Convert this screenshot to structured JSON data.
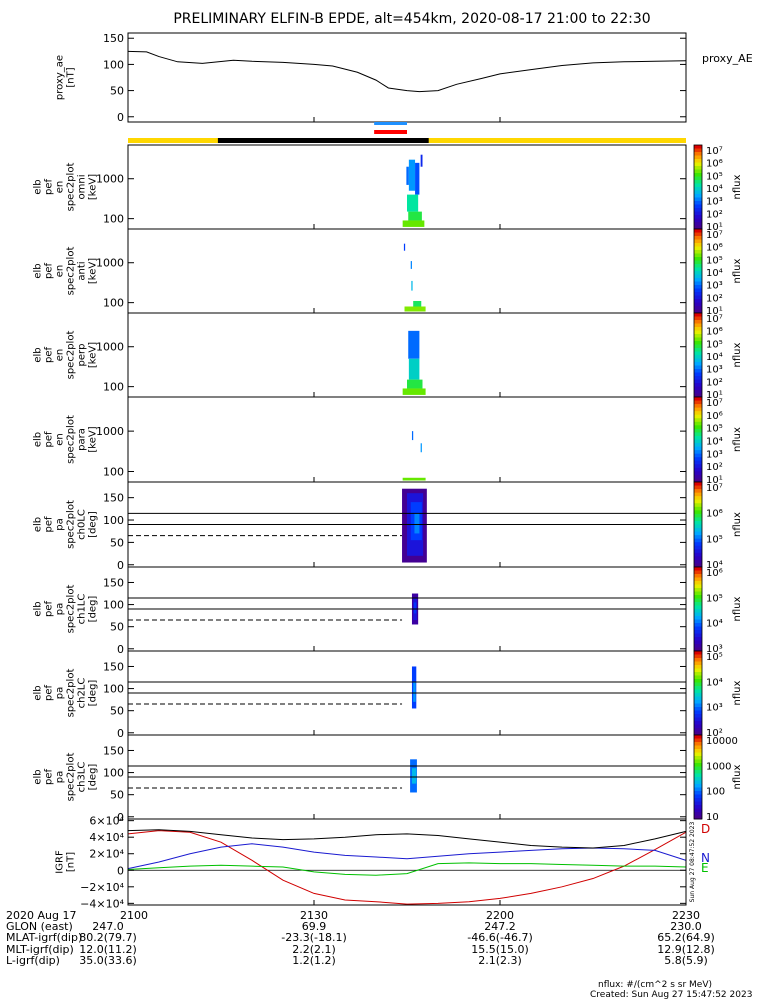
{
  "title": "PRELIMINARY ELFIN-B EPDE, alt=454km, 2020-08-17 21:00 to 22:30",
  "colors": {
    "sun_bar": "#ffd700",
    "shadow_bar": "#000000",
    "flag_blue": "#1e90ff",
    "flag_red": "#ff0000",
    "grf_x": "#000000",
    "grf_y": "#1a1ad0",
    "grf_z": "#00c000",
    "grf_total": "#d00000"
  },
  "chart_data": [
    {
      "type": "line",
      "panel": "proxy_ae",
      "ylabel": [
        "proxy_ae",
        "[nT]"
      ],
      "legend": "proxy_AE",
      "ylim": [
        -10,
        160
      ],
      "yticks": [
        "150",
        "100",
        "50",
        "0"
      ],
      "ytick_values": [
        150,
        100,
        50,
        0
      ],
      "x": [
        0,
        3,
        5,
        8,
        12,
        17,
        20,
        25,
        30,
        33,
        37,
        40,
        42,
        45,
        47,
        50,
        53,
        57,
        60,
        65,
        70,
        75,
        80,
        85,
        90
      ],
      "values": [
        125,
        124,
        115,
        105,
        102,
        108,
        106,
        104,
        100,
        97,
        85,
        70,
        55,
        50,
        48,
        50,
        62,
        73,
        82,
        90,
        98,
        103,
        105,
        106,
        107
      ]
    },
    {
      "type": "heatmap",
      "panel": "en_spec2plot_omni",
      "ylabel": [
        "elb",
        "pef",
        "en",
        "spec2plot",
        "omni",
        "[keV]"
      ],
      "yticks": [
        "1000",
        "100"
      ],
      "ytick_values": [
        1000,
        100
      ],
      "ylog": true,
      "ylim": [
        55,
        7000
      ],
      "colorbar": {
        "label": "nflux",
        "ticks": [
          "10⁷",
          "10⁶",
          "10⁵",
          "10⁴",
          "10³",
          "10²",
          "10¹"
        ]
      },
      "cells": [
        {
          "x0": 44.9,
          "x1": 45.3,
          "y0": 700,
          "y1": 2000,
          "level": 0.35
        },
        {
          "x0": 45.3,
          "x1": 46.3,
          "y0": 500,
          "y1": 3000,
          "level": 0.4
        },
        {
          "x0": 46.3,
          "x1": 47.0,
          "y0": 400,
          "y1": 2500,
          "level": 0.32
        },
        {
          "x0": 45.0,
          "x1": 46.8,
          "y0": 150,
          "y1": 400,
          "level": 0.55
        },
        {
          "x0": 45.2,
          "x1": 47.4,
          "y0": 90,
          "y1": 150,
          "level": 0.62
        },
        {
          "x0": 44.3,
          "x1": 47.8,
          "y0": 62,
          "y1": 90,
          "level": 0.7
        },
        {
          "x0": 47.2,
          "x1": 47.5,
          "y0": 2000,
          "y1": 4000,
          "level": 0.25
        }
      ]
    },
    {
      "type": "heatmap",
      "panel": "en_spec2plot_anti",
      "ylabel": [
        "elb",
        "pef",
        "en",
        "spec2plot",
        "anti",
        "[keV]"
      ],
      "yticks": [
        "1000",
        "100"
      ],
      "ytick_values": [
        1000,
        100
      ],
      "ylog": true,
      "ylim": [
        55,
        7000
      ],
      "colorbar": {
        "label": "nflux",
        "ticks": [
          "10⁷",
          "10⁶",
          "10⁵",
          "10⁴",
          "10³",
          "10²",
          "10¹"
        ]
      },
      "cells": [
        {
          "x0": 44.5,
          "x1": 44.7,
          "y0": 2000,
          "y1": 3000,
          "level": 0.3
        },
        {
          "x0": 45.6,
          "x1": 45.8,
          "y0": 700,
          "y1": 1100,
          "level": 0.38
        },
        {
          "x0": 45.7,
          "x1": 45.9,
          "y0": 200,
          "y1": 350,
          "level": 0.45
        },
        {
          "x0": 44.6,
          "x1": 48.0,
          "y0": 60,
          "y1": 80,
          "level": 0.72
        },
        {
          "x0": 46.0,
          "x1": 47.3,
          "y0": 80,
          "y1": 110,
          "level": 0.6
        }
      ]
    },
    {
      "type": "heatmap",
      "panel": "en_spec2plot_perp",
      "ylabel": [
        "elb",
        "pef",
        "en",
        "spec2plot",
        "perp",
        "[keV]"
      ],
      "yticks": [
        "1000",
        "100"
      ],
      "ytick_values": [
        1000,
        100
      ],
      "ylog": true,
      "ylim": [
        55,
        7000
      ],
      "colorbar": {
        "label": "nflux",
        "ticks": [
          "10⁷",
          "10⁶",
          "10⁵",
          "10⁴",
          "10³",
          "10²",
          "10¹"
        ]
      },
      "cells": [
        {
          "x0": 45.2,
          "x1": 47.0,
          "y0": 500,
          "y1": 2500,
          "level": 0.35
        },
        {
          "x0": 45.3,
          "x1": 47.0,
          "y0": 150,
          "y1": 500,
          "level": 0.5
        },
        {
          "x0": 45.0,
          "x1": 47.5,
          "y0": 90,
          "y1": 150,
          "level": 0.62
        },
        {
          "x0": 44.3,
          "x1": 48.0,
          "y0": 62,
          "y1": 90,
          "level": 0.7
        }
      ]
    },
    {
      "type": "heatmap",
      "panel": "en_spec2plot_para",
      "ylabel": [
        "elb",
        "pef",
        "en",
        "spec2plot",
        "para",
        "[keV]"
      ],
      "yticks": [
        "1000",
        "100"
      ],
      "ytick_values": [
        1000,
        100
      ],
      "ylog": true,
      "ylim": [
        55,
        7000
      ],
      "colorbar": {
        "label": "nflux",
        "ticks": [
          "10⁷",
          "10⁶",
          "10⁵",
          "10⁴",
          "10³",
          "10²",
          "10¹"
        ]
      },
      "cells": [
        {
          "x0": 45.8,
          "x1": 46.0,
          "y0": 600,
          "y1": 1000,
          "level": 0.35
        },
        {
          "x0": 47.2,
          "x1": 47.4,
          "y0": 300,
          "y1": 500,
          "level": 0.4
        },
        {
          "x0": 44.3,
          "x1": 48.0,
          "y0": 60,
          "y1": 70,
          "level": 0.7
        }
      ]
    },
    {
      "type": "heatmap",
      "panel": "pa_spec2plot_ch0LC",
      "ylabel": [
        "elb",
        "pef",
        "pa",
        "spec2plot",
        "ch0LC",
        "[deg]"
      ],
      "yticks": [
        "150",
        "100",
        "50",
        "0"
      ],
      "ytick_values": [
        150,
        100,
        50,
        0
      ],
      "ylim": [
        -5,
        185
      ],
      "loss_cone": [
        115,
        90
      ],
      "loss_cone_dashed": 65,
      "colorbar": {
        "label": "nflux",
        "ticks": [
          "10⁷",
          "10⁶",
          "10⁵",
          "10⁴"
        ]
      },
      "cells": [
        {
          "x0": 44.2,
          "x1": 48.2,
          "y0": 5,
          "y1": 170,
          "level": 0.05
        },
        {
          "x0": 45.0,
          "x1": 47.6,
          "y0": 20,
          "y1": 160,
          "level": 0.2
        },
        {
          "x0": 45.6,
          "x1": 47.4,
          "y0": 55,
          "y1": 140,
          "level": 0.3
        },
        {
          "x0": 46.2,
          "x1": 47.0,
          "y0": 70,
          "y1": 115,
          "level": 0.38
        }
      ]
    },
    {
      "type": "heatmap",
      "panel": "pa_spec2plot_ch1LC",
      "ylabel": [
        "elb",
        "pef",
        "pa",
        "spec2plot",
        "ch1LC",
        "[deg]"
      ],
      "yticks": [
        "150",
        "100",
        "50",
        "0"
      ],
      "ytick_values": [
        150,
        100,
        50,
        0
      ],
      "ylim": [
        -5,
        185
      ],
      "loss_cone": [
        115,
        90
      ],
      "loss_cone_dashed": 65,
      "colorbar": {
        "label": "nflux",
        "ticks": [
          "10⁶",
          "10⁵",
          "10⁴",
          "10³"
        ]
      },
      "cells": [
        {
          "x0": 45.8,
          "x1": 46.8,
          "y0": 55,
          "y1": 125,
          "level": 0.08
        },
        {
          "x0": 46.0,
          "x1": 46.6,
          "y0": 65,
          "y1": 115,
          "level": 0.2
        },
        {
          "x0": 46.1,
          "x1": 46.5,
          "y0": 80,
          "y1": 105,
          "level": 0.28
        }
      ]
    },
    {
      "type": "heatmap",
      "panel": "pa_spec2plot_ch2LC",
      "ylabel": [
        "elb",
        "pef",
        "pa",
        "spec2plot",
        "ch2LC",
        "[deg]"
      ],
      "yticks": [
        "150",
        "100",
        "50",
        "0"
      ],
      "ytick_values": [
        150,
        100,
        50,
        0
      ],
      "ylim": [
        -5,
        185
      ],
      "loss_cone": [
        115,
        90
      ],
      "loss_cone_dashed": 65,
      "colorbar": {
        "label": "nflux",
        "ticks": [
          "10⁵",
          "10⁴",
          "10³",
          "10²"
        ]
      },
      "cells": [
        {
          "x0": 45.8,
          "x1": 46.5,
          "y0": 55,
          "y1": 150,
          "level": 0.3
        },
        {
          "x0": 46.0,
          "x1": 46.4,
          "y0": 70,
          "y1": 115,
          "level": 0.4
        }
      ]
    },
    {
      "type": "heatmap",
      "panel": "pa_spec2plot_ch3LC",
      "ylabel": [
        "elb",
        "pef",
        "pa",
        "spec2plot",
        "ch3LC",
        "[deg]"
      ],
      "yticks": [
        "150",
        "100",
        "50",
        "0"
      ],
      "ytick_values": [
        150,
        100,
        50,
        0
      ],
      "ylim": [
        -5,
        185
      ],
      "loss_cone": [
        115,
        90
      ],
      "loss_cone_dashed": 65,
      "colorbar": {
        "label": "nflux",
        "ticks": [
          "10000",
          "1000",
          "100",
          "10"
        ]
      },
      "cells": [
        {
          "x0": 45.5,
          "x1": 46.6,
          "y0": 55,
          "y1": 130,
          "level": 0.35
        },
        {
          "x0": 45.8,
          "x1": 46.5,
          "y0": 75,
          "y1": 110,
          "level": 0.45
        }
      ]
    },
    {
      "type": "line",
      "panel": "igrf",
      "ylabel": [
        "IGRF",
        "[nT]"
      ],
      "yticks": [
        "6×10⁴",
        "4×10⁴",
        "2×10⁴",
        "0",
        "−2×10⁴",
        "−4×10⁴"
      ],
      "ytick_values": [
        60000,
        40000,
        20000,
        0,
        -20000,
        -40000
      ],
      "ylim": [
        -42000,
        62000
      ],
      "legend": [
        "D",
        "N",
        "E"
      ],
      "side_stamp": "Sun Aug 27 08:47:52 2023",
      "x": [
        0,
        5,
        10,
        15,
        20,
        25,
        30,
        35,
        40,
        45,
        50,
        55,
        60,
        65,
        70,
        75,
        80,
        85,
        90
      ],
      "series": [
        {
          "name": "D",
          "color": "#d00000",
          "values": [
            44000,
            48000,
            46000,
            34000,
            12000,
            -12000,
            -28000,
            -36000,
            -38000,
            -41000,
            -40000,
            -38000,
            -34000,
            -28000,
            -20000,
            -10000,
            5000,
            25000,
            46000
          ]
        },
        {
          "name": "N",
          "color": "#1a1ad0",
          "values": [
            2000,
            10000,
            20000,
            28000,
            32000,
            28000,
            22000,
            18000,
            16000,
            14000,
            17000,
            20000,
            22000,
            24000,
            26000,
            27000,
            26000,
            24000,
            12000
          ]
        },
        {
          "name": "E",
          "color": "#00c000",
          "values": [
            1000,
            3000,
            5000,
            6000,
            5000,
            4000,
            -2000,
            -5000,
            -6000,
            -4000,
            8000,
            9000,
            8000,
            8000,
            7000,
            6000,
            5000,
            5000,
            4000
          ]
        },
        {
          "name": "",
          "color": "#000000",
          "values": [
            48000,
            49000,
            47000,
            43000,
            39000,
            37000,
            38000,
            40000,
            43000,
            44000,
            42000,
            38000,
            34000,
            30000,
            28000,
            27000,
            30000,
            38000,
            47000
          ]
        }
      ]
    }
  ],
  "x_axis": {
    "ticks": [
      "2100",
      "2130",
      "2200",
      "2230"
    ],
    "tick_values": [
      0,
      30,
      60,
      90
    ],
    "row_labels": [
      "2020 Aug 17",
      "GLON (east)",
      "MLAT-igrf(dip)",
      "MLT-igrf(dip)",
      "L-igrf(dip)"
    ],
    "rows": [
      [
        "",
        "",
        "",
        ""
      ],
      [
        "247.0",
        "69.9",
        "247.2",
        "230.0"
      ],
      [
        "80.2(79.7)",
        "-23.3(-18.1)",
        "-46.6(-46.7)",
        "65.2(64.9)"
      ],
      [
        "12.0(11.2)",
        "2.2(2.1)",
        "15.5(15.0)",
        "12.9(12.8)"
      ],
      [
        "35.0(33.6)",
        "1.2(1.2)",
        "2.1(2.3)",
        "5.8(5.9)"
      ]
    ]
  },
  "footer": {
    "units": "nflux: #/(cm^2 s sr MeV)",
    "created": "Created: Sun Aug 27 15:47:52 2023"
  }
}
